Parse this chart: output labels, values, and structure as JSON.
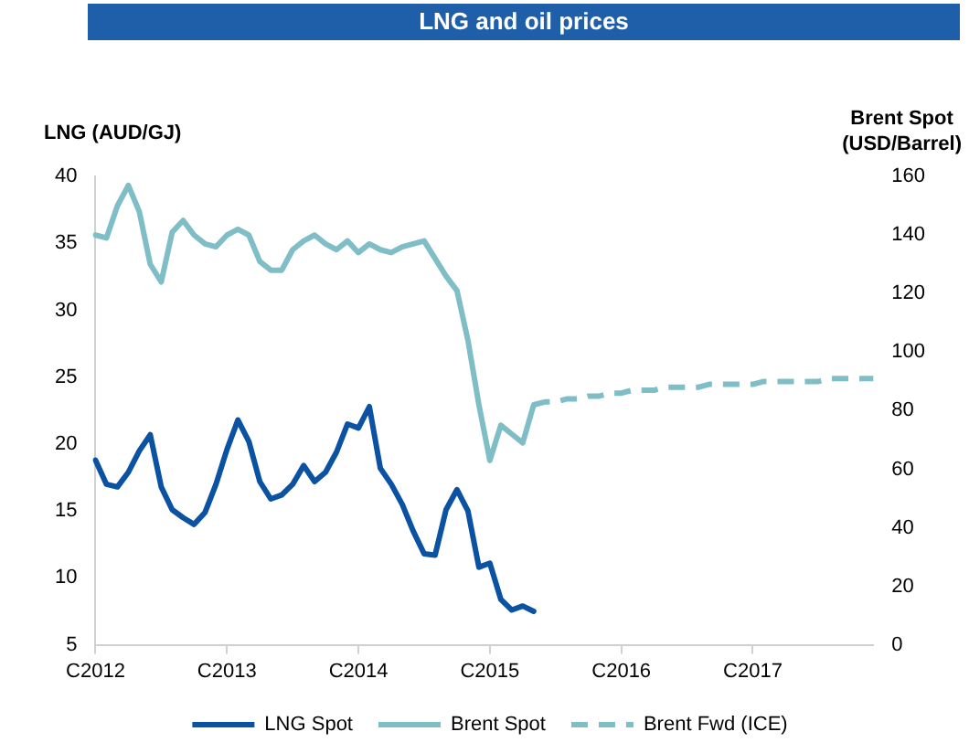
{
  "chart_data": {
    "type": "line",
    "title": "LNG and oil prices",
    "ylabel": "LNG (AUD/GJ)",
    "y2label": "Brent Spot (USD/Barrel)",
    "categories": [
      "C2012",
      null,
      null,
      null,
      null,
      null,
      null,
      null,
      null,
      null,
      null,
      null,
      "C2013",
      null,
      null,
      null,
      null,
      null,
      null,
      null,
      null,
      null,
      null,
      null,
      "C2014",
      null,
      null,
      null,
      null,
      null,
      null,
      null,
      null,
      null,
      null,
      null,
      "C2015",
      null,
      null,
      null,
      null,
      null,
      null,
      null,
      null,
      null,
      null,
      null,
      "C2016",
      null,
      null,
      null,
      null,
      null,
      null,
      null,
      null,
      null,
      null,
      null,
      "C2017",
      null,
      null,
      null,
      null,
      null,
      null,
      null,
      null,
      null,
      null,
      null
    ],
    "ylim": [
      5,
      40
    ],
    "yticks": [
      5,
      10,
      15,
      20,
      25,
      30,
      35,
      40
    ],
    "y2lim": [
      0,
      160
    ],
    "y2ticks": [
      0,
      20,
      40,
      60,
      80,
      100,
      120,
      140,
      160
    ],
    "grid": false,
    "legend": "bottom",
    "series": [
      {
        "name": "LNG Spot",
        "color": "#0b52a3",
        "axis": "y",
        "line_style": "solid",
        "values": [
          18.8,
          17.0,
          16.8,
          17.9,
          19.5,
          20.7,
          16.8,
          15.1,
          14.5,
          14.0,
          14.9,
          17.0,
          19.6,
          21.8,
          20.2,
          17.2,
          15.9,
          16.2,
          17.0,
          18.4,
          17.2,
          17.9,
          19.4,
          21.5,
          21.2,
          22.8,
          18.2,
          17.0,
          15.5,
          13.5,
          11.8,
          11.7,
          15.1,
          16.6,
          15.0,
          10.8,
          11.1,
          8.4,
          7.6,
          7.9,
          7.5,
          null,
          null,
          null,
          null,
          null,
          null,
          null,
          null,
          null,
          null,
          null,
          null,
          null,
          null,
          null,
          null,
          null,
          null,
          null,
          null,
          null,
          null,
          null,
          null,
          null,
          null,
          null,
          null,
          null,
          null,
          null
        ]
      },
      {
        "name": "Brent Spot",
        "color": "#7fbec6",
        "axis": "y2",
        "line_style": "solid",
        "values": [
          140,
          139,
          150,
          157,
          148,
          130,
          124,
          141,
          145,
          140,
          137,
          136,
          140,
          142,
          140,
          131,
          128,
          128,
          135,
          138,
          140,
          137,
          135,
          138,
          134,
          137,
          135,
          134,
          136,
          137,
          138,
          132,
          126,
          121,
          104,
          82,
          63,
          75,
          72,
          69,
          82,
          null,
          null,
          null,
          null,
          null,
          null,
          null,
          null,
          null,
          null,
          null,
          null,
          null,
          null,
          null,
          null,
          null,
          null,
          null,
          null,
          null,
          null,
          null,
          null,
          null,
          null,
          null,
          null,
          null,
          null,
          null
        ]
      },
      {
        "name": "Brent Fwd (ICE)",
        "color": "#7fbec6",
        "axis": "y2",
        "line_style": "dashed",
        "values": [
          null,
          null,
          null,
          null,
          null,
          null,
          null,
          null,
          null,
          null,
          null,
          null,
          null,
          null,
          null,
          null,
          null,
          null,
          null,
          null,
          null,
          null,
          null,
          null,
          null,
          null,
          null,
          null,
          null,
          null,
          null,
          null,
          null,
          null,
          null,
          null,
          null,
          null,
          null,
          null,
          82,
          83,
          83,
          84,
          84,
          85,
          85,
          86,
          86,
          87,
          87,
          87,
          88,
          88,
          88,
          88,
          89,
          89,
          89,
          89,
          89,
          90,
          90,
          90,
          90,
          90,
          90,
          91,
          91,
          91,
          91,
          91
        ]
      }
    ]
  }
}
